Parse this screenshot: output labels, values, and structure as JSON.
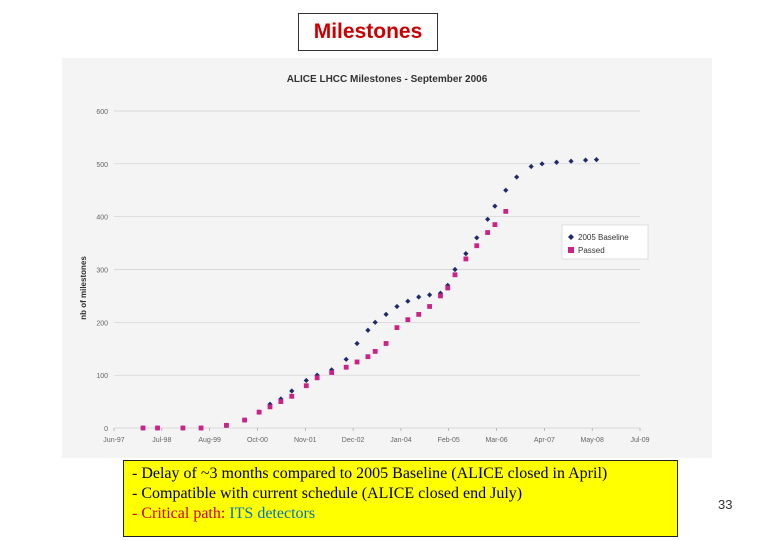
{
  "slide": {
    "title": "Milestones",
    "page_number": "33"
  },
  "notes": {
    "line1": "- Delay of ~3 months compared to 2005 Baseline (ALICE closed in April)",
    "line2": "- Compatible with current schedule (ALICE closed end July)",
    "line3_prefix": "- Critical path: ",
    "line3_highlight": "ITS detectors",
    "colors": {
      "prefix": "#cc0000",
      "highlight": "#0070c0",
      "background": "#ffff00"
    }
  },
  "chart_data": {
    "type": "scatter",
    "title": "ALICE LHCC Milestones - September 2006",
    "xlabel": "",
    "ylabel": "nb of milestones",
    "x_tick_labels": [
      "Jun-97",
      "Jul-98",
      "Aug-99",
      "Oct-00",
      "Nov-01",
      "Dec-02",
      "Jan-04",
      "Feb-05",
      "Mar-06",
      "Apr-07",
      "May-08",
      "Jul-09"
    ],
    "y_tick_labels": [
      "0",
      "100",
      "200",
      "300",
      "400",
      "500",
      "600"
    ],
    "ylim": [
      0,
      600
    ],
    "grid": true,
    "legend_position": "right",
    "series": [
      {
        "name": "2005 Baseline",
        "color": "#1f2a6b",
        "marker": "diamond",
        "x": [
          "1998-02",
          "1998-06",
          "1999-01",
          "1999-06",
          "2000-01",
          "2000-06",
          "2000-10",
          "2001-01",
          "2001-04",
          "2001-07",
          "2001-11",
          "2002-02",
          "2002-06",
          "2002-10",
          "2003-01",
          "2003-04",
          "2003-06",
          "2003-09",
          "2003-12",
          "2004-03",
          "2004-06",
          "2004-09",
          "2004-12",
          "2005-02",
          "2005-04",
          "2005-07",
          "2005-10",
          "2006-01",
          "2006-03",
          "2006-06",
          "2006-09",
          "2007-01",
          "2007-04",
          "2007-08",
          "2007-12",
          "2008-04",
          "2008-07"
        ],
        "values": [
          0,
          0,
          0,
          0,
          5,
          15,
          30,
          45,
          55,
          70,
          90,
          100,
          110,
          130,
          160,
          185,
          200,
          215,
          230,
          240,
          248,
          252,
          255,
          270,
          300,
          330,
          360,
          395,
          420,
          450,
          475,
          495,
          500,
          503,
          505,
          507,
          508
        ]
      },
      {
        "name": "Passed",
        "color": "#cc2288",
        "marker": "square",
        "x": [
          "1998-02",
          "1998-06",
          "1999-01",
          "1999-06",
          "2000-01",
          "2000-06",
          "2000-10",
          "2001-01",
          "2001-04",
          "2001-07",
          "2001-11",
          "2002-02",
          "2002-06",
          "2002-10",
          "2003-01",
          "2003-04",
          "2003-06",
          "2003-09",
          "2003-12",
          "2004-03",
          "2004-06",
          "2004-09",
          "2004-12",
          "2005-02",
          "2005-04",
          "2005-07",
          "2005-10",
          "2006-01",
          "2006-03",
          "2006-06"
        ],
        "values": [
          0,
          0,
          0,
          0,
          5,
          15,
          30,
          40,
          50,
          60,
          80,
          95,
          105,
          115,
          125,
          135,
          145,
          160,
          190,
          205,
          215,
          230,
          250,
          265,
          290,
          320,
          345,
          370,
          385,
          410
        ]
      }
    ]
  }
}
